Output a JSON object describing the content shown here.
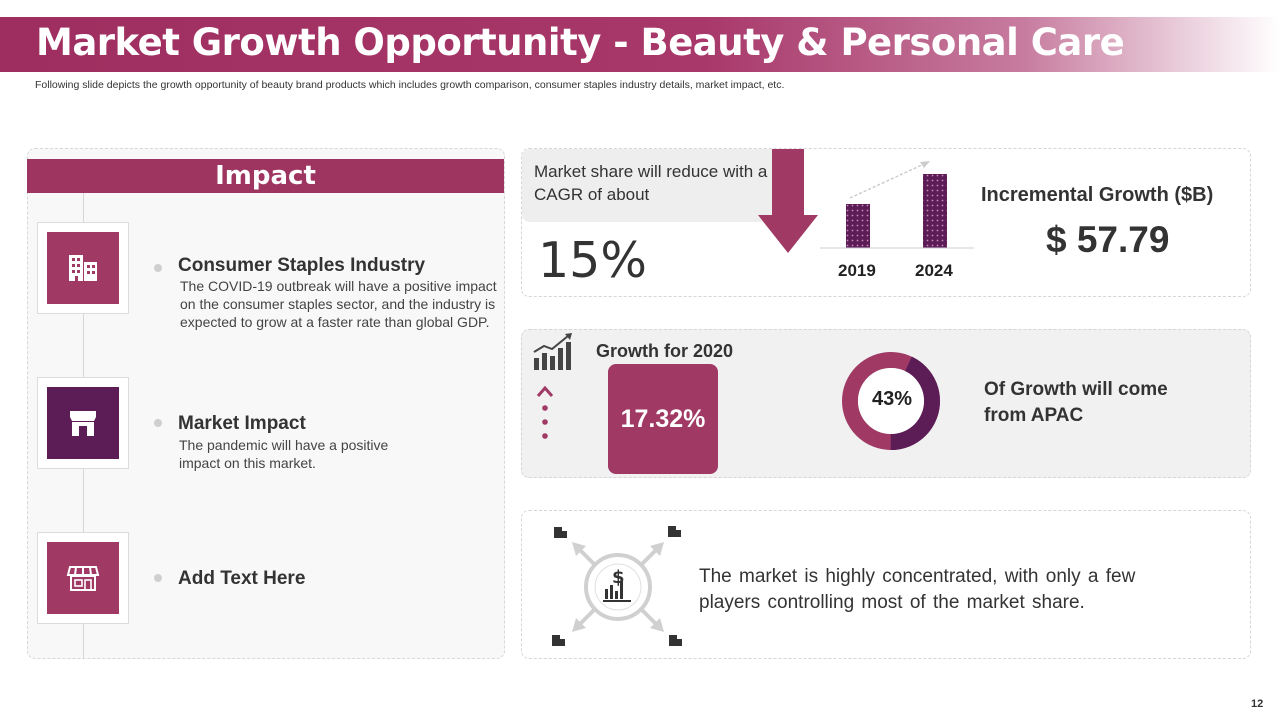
{
  "header": {
    "title": "Market Growth Opportunity - Beauty & Personal Care",
    "subtitle": "Following slide depicts the growth opportunity of beauty brand products which includes growth comparison, consumer staples industry details, market impact, etc."
  },
  "impact": {
    "heading": "Impact",
    "items": [
      {
        "title": "Consumer Staples Industry",
        "description": "The COVID-19 outbreak will have a positive impact on the consumer staples sector, and the industry is expected to grow at a faster rate than global GDP.",
        "icon": "office-buildings-icon"
      },
      {
        "title": "Market Impact",
        "description": "The pandemic will have a positive impact on this market.",
        "icon": "storefront-icon"
      },
      {
        "title": "Add Text Here",
        "description": "",
        "icon": "shop-awning-icon"
      }
    ]
  },
  "cagr": {
    "text": "Market share will reduce with a CAGR of about",
    "value": "15%",
    "years": [
      "2019",
      "2024"
    ],
    "incremental_label": "Incremental Growth ($B)",
    "incremental_value": "$ 57.79"
  },
  "growth": {
    "label": "Growth for 2020",
    "value": "17.32%",
    "apac_percent": "43%",
    "apac_fraction": 0.43,
    "apac_text": "Of Growth will come from APAC"
  },
  "market": {
    "text": "The market is highly concentrated, with only a few players controlling most of the market share."
  },
  "page": {
    "number": "12"
  },
  "colors": {
    "accent": "#a03a65",
    "purple_dark": "#5c1d57",
    "grey_card": "#f1f1f1"
  }
}
